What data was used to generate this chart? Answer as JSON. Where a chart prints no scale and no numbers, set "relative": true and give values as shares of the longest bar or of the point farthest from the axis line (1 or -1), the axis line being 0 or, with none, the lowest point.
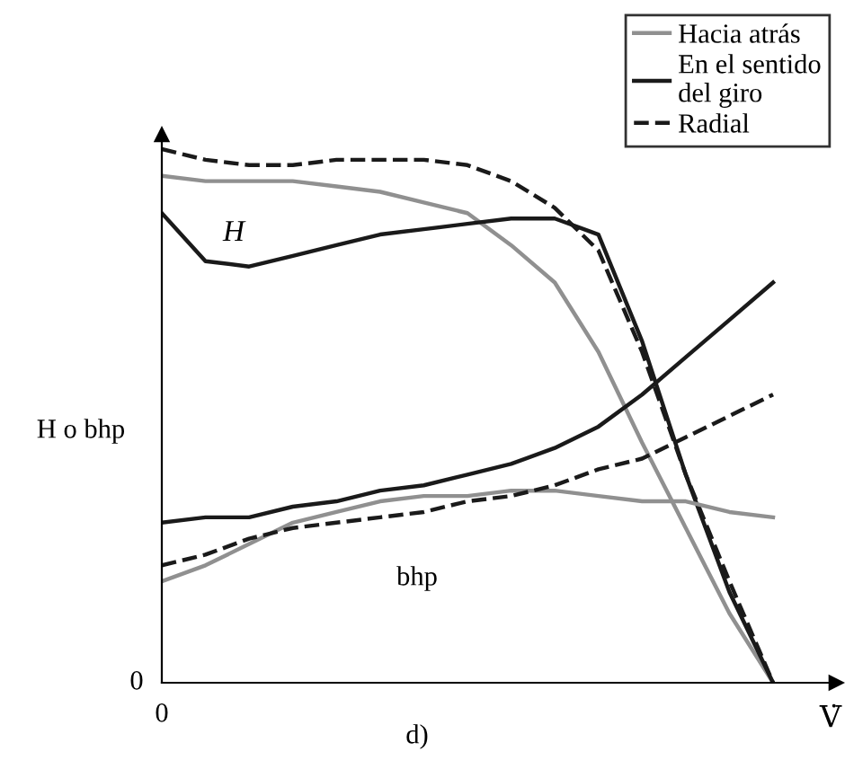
{
  "chart_data": {
    "type": "line",
    "relative": true,
    "xlabel": "V̇",
    "ylabel": "H o bhp",
    "categories": [
      null,
      null,
      null,
      null,
      null,
      null,
      null,
      null,
      null,
      null,
      null,
      null,
      null,
      null,
      null
    ],
    "series": [
      {
        "name": "Hacia atrás",
        "color": "#909090",
        "line_style": "solid",
        "values": [
          0.95,
          0.94,
          0.94,
          0.94,
          0.93,
          0.92,
          0.9,
          0.88,
          0.82,
          0.75,
          0.62,
          0.45,
          0.29,
          0.13,
          0
        ]
      },
      {
        "name": "En el sentido\ndel giro",
        "color": "#1a1a1a",
        "line_style": "solid",
        "values": [
          0.88,
          0.79,
          0.78,
          0.8,
          0.82,
          0.84,
          0.85,
          0.86,
          0.87,
          0.87,
          0.84,
          0.64,
          0.39,
          0.17,
          0
        ]
      },
      {
        "name": "Radial",
        "color": "#1a1a1a",
        "line_style": "dashed",
        "values": [
          1.0,
          0.98,
          0.97,
          0.97,
          0.98,
          0.98,
          0.98,
          0.97,
          0.94,
          0.89,
          0.81,
          0.62,
          0.39,
          0.19,
          0
        ]
      },
      {
        "color": "#909090",
        "line_style": "solid",
        "values": [
          0.19,
          0.22,
          0.26,
          0.3,
          0.32,
          0.34,
          0.35,
          0.35,
          0.36,
          0.36,
          0.35,
          0.34,
          0.34,
          0.32,
          0.31
        ]
      },
      {
        "color": "#1a1a1a",
        "line_style": "solid",
        "values": [
          0.3,
          0.31,
          0.31,
          0.33,
          0.34,
          0.36,
          0.37,
          0.39,
          0.41,
          0.44,
          0.48,
          0.54,
          0.61,
          0.68,
          0.75
        ]
      },
      {
        "color": "#1a1a1a",
        "line_style": "dashed",
        "values": [
          0.22,
          0.24,
          0.27,
          0.29,
          0.3,
          0.31,
          0.32,
          0.34,
          0.35,
          0.37,
          0.4,
          0.42,
          0.46,
          0.5,
          0.54
        ]
      }
    ],
    "annotations": [
      "H",
      "bhp",
      "0",
      "0",
      "d)"
    ],
    "legend": "top right"
  }
}
